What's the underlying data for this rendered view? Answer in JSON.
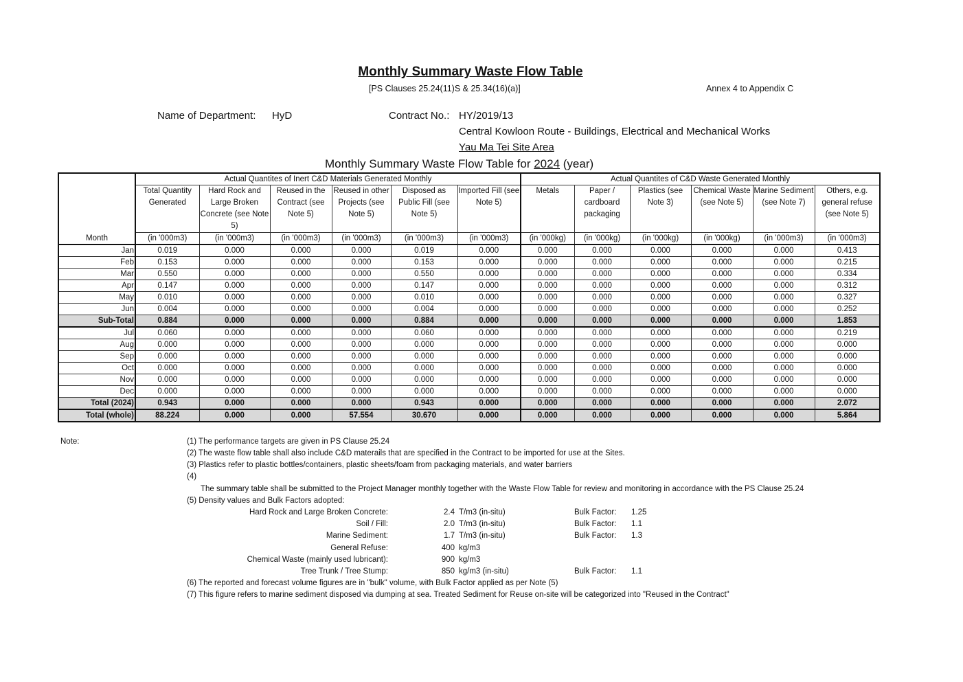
{
  "header": {
    "title": "Monthly Summary Waste Flow Table",
    "clauses": "[PS Clauses 25.24(11)S & 25.34(16)(a)]",
    "annex": "Annex 4 to Appendix C",
    "department_label": "Name of Department:",
    "department": "HyD",
    "contract_label": "Contract No.:",
    "contract_no": "HY/2019/13",
    "contract_name": "Central Kowloon Route - Buildings, Electrical and Mechanical Works",
    "site": "Yau Ma Tei Site Area",
    "table_title_prefix": "Monthly Summary Waste Flow Table for ",
    "year": "2024",
    "table_title_suffix": " (year)"
  },
  "table": {
    "group_inert": "Actual Quantites of Inert C&D Materials Generated Monthly",
    "group_waste": "Actual Quantites of C&D Waste Generated Monthly",
    "month_header": "Month",
    "columns": [
      {
        "label": "Total Quantity Generated",
        "unit": "(in '000m3)"
      },
      {
        "label": "Hard Rock and Large Broken Concrete (see Note 5)",
        "unit": "(in '000m3)"
      },
      {
        "label": "Reused in the Contract (see Note 5)",
        "unit": "(in '000m3)"
      },
      {
        "label": "Reused in other Projects (see Note 5)",
        "unit": "(in '000m3)"
      },
      {
        "label": "Disposed as Public Fill (see Note 5)",
        "unit": "(in '000m3)"
      },
      {
        "label": "Imported Fill (see Note 5)",
        "unit": "(in '000m3)"
      },
      {
        "label": "Metals",
        "unit": "(in '000kg)"
      },
      {
        "label": "Paper / cardboard packaging",
        "unit": "(in '000kg)"
      },
      {
        "label": "Plastics (see Note 3)",
        "unit": "(in '000kg)"
      },
      {
        "label": "Chemical Waste (see Note 5)",
        "unit": "(in '000kg)"
      },
      {
        "label": "Marine Sediment (see Note 7)",
        "unit": "(in '000m3)"
      },
      {
        "label": "Others, e.g. general refuse (see Note 5)",
        "unit": "(in '000m3)"
      }
    ],
    "rows": [
      {
        "month": "Jan",
        "type": "row",
        "values": [
          "0.019",
          "0.000",
          "0.000",
          "0.000",
          "0.019",
          "0.000",
          "0.000",
          "0.000",
          "0.000",
          "0.000",
          "0.000",
          "0.413"
        ]
      },
      {
        "month": "Feb",
        "type": "row",
        "values": [
          "0.153",
          "0.000",
          "0.000",
          "0.000",
          "0.153",
          "0.000",
          "0.000",
          "0.000",
          "0.000",
          "0.000",
          "0.000",
          "0.215"
        ]
      },
      {
        "month": "Mar",
        "type": "row",
        "values": [
          "0.550",
          "0.000",
          "0.000",
          "0.000",
          "0.550",
          "0.000",
          "0.000",
          "0.000",
          "0.000",
          "0.000",
          "0.000",
          "0.334"
        ]
      },
      {
        "month": "Apr",
        "type": "row",
        "values": [
          "0.147",
          "0.000",
          "0.000",
          "0.000",
          "0.147",
          "0.000",
          "0.000",
          "0.000",
          "0.000",
          "0.000",
          "0.000",
          "0.312"
        ]
      },
      {
        "month": "May",
        "type": "row",
        "values": [
          "0.010",
          "0.000",
          "0.000",
          "0.000",
          "0.010",
          "0.000",
          "0.000",
          "0.000",
          "0.000",
          "0.000",
          "0.000",
          "0.327"
        ]
      },
      {
        "month": "Jun",
        "type": "row",
        "values": [
          "0.004",
          "0.000",
          "0.000",
          "0.000",
          "0.004",
          "0.000",
          "0.000",
          "0.000",
          "0.000",
          "0.000",
          "0.000",
          "0.252"
        ]
      },
      {
        "month": "Sub-Total",
        "type": "sub",
        "values": [
          "0.884",
          "0.000",
          "0.000",
          "0.000",
          "0.884",
          "0.000",
          "0.000",
          "0.000",
          "0.000",
          "0.000",
          "0.000",
          "1.853"
        ]
      },
      {
        "month": "Jul",
        "type": "row",
        "values": [
          "0.060",
          "0.000",
          "0.000",
          "0.000",
          "0.060",
          "0.000",
          "0.000",
          "0.000",
          "0.000",
          "0.000",
          "0.000",
          "0.219"
        ]
      },
      {
        "month": "Aug",
        "type": "row",
        "values": [
          "0.000",
          "0.000",
          "0.000",
          "0.000",
          "0.000",
          "0.000",
          "0.000",
          "0.000",
          "0.000",
          "0.000",
          "0.000",
          "0.000"
        ]
      },
      {
        "month": "Sep",
        "type": "row",
        "values": [
          "0.000",
          "0.000",
          "0.000",
          "0.000",
          "0.000",
          "0.000",
          "0.000",
          "0.000",
          "0.000",
          "0.000",
          "0.000",
          "0.000"
        ]
      },
      {
        "month": "Oct",
        "type": "row",
        "values": [
          "0.000",
          "0.000",
          "0.000",
          "0.000",
          "0.000",
          "0.000",
          "0.000",
          "0.000",
          "0.000",
          "0.000",
          "0.000",
          "0.000"
        ]
      },
      {
        "month": "Nov",
        "type": "row",
        "values": [
          "0.000",
          "0.000",
          "0.000",
          "0.000",
          "0.000",
          "0.000",
          "0.000",
          "0.000",
          "0.000",
          "0.000",
          "0.000",
          "0.000"
        ]
      },
      {
        "month": "Dec",
        "type": "row",
        "values": [
          "0.000",
          "0.000",
          "0.000",
          "0.000",
          "0.000",
          "0.000",
          "0.000",
          "0.000",
          "0.000",
          "0.000",
          "0.000",
          "0.000"
        ]
      },
      {
        "month": "Total (2024)",
        "type": "tot",
        "values": [
          "0.943",
          "0.000",
          "0.000",
          "0.000",
          "0.943",
          "0.000",
          "0.000",
          "0.000",
          "0.000",
          "0.000",
          "0.000",
          "2.072"
        ]
      },
      {
        "month": "Total (whole)",
        "type": "whole",
        "values": [
          "88.224",
          "0.000",
          "0.000",
          "57.554",
          "30.670",
          "0.000",
          "0.000",
          "0.000",
          "0.000",
          "0.000",
          "0.000",
          "5.864"
        ]
      }
    ]
  },
  "notes": {
    "label": "Note:",
    "n1": "(1)  The performance targets are given in PS Clause 25.24",
    "n2": "(2)  The waste flow table shall also include C&D materails that are specified in the Contract to be imported for use at the Sites.",
    "n3": "(3)  Plastics refer to plastic bottles/containers, plastic sheets/foam from packaging materials, and water barriers",
    "n4": "(4)",
    "n4_text": "The summary table shall be submitted to the Project Manager monthly together with the Waste Flow Table for review and monitoring in accordance with the PS Clause 25.24",
    "n5": "(5)  Density values and Bulk Factors adopted:",
    "density": [
      {
        "material": "Hard Rock and Large Broken Concrete:",
        "value": "2.4",
        "unit": "T/m3 (in-situ)",
        "bf_label": "Bulk Factor:",
        "bf": "1.25"
      },
      {
        "material": "Soil / Fill:",
        "value": "2.0",
        "unit": "T/m3 (in-situ)",
        "bf_label": "Bulk Factor:",
        "bf": "1.1"
      },
      {
        "material": "Marine Sediment:",
        "value": "1.7",
        "unit": "T/m3 (in-situ)",
        "bf_label": "Bulk Factor:",
        "bf": "1.3"
      },
      {
        "material": "General Refuse:",
        "value": "400",
        "unit": "kg/m3",
        "bf_label": "",
        "bf": ""
      },
      {
        "material": "Chemical Waste (mainly used lubricant):",
        "value": "900",
        "unit": "kg/m3",
        "bf_label": "",
        "bf": ""
      },
      {
        "material": "Tree Trunk / Tree Stump:",
        "value": "850",
        "unit": "kg/m3 (in-situ)",
        "bf_label": "Bulk Factor:",
        "bf": "1.1"
      }
    ],
    "n6": "(6)  The reported and forecast volume figures are in \"bulk\" volume, with Bulk Factor applied as per Note (5)",
    "n7": "(7)  This figure refers to marine sediment disposed via dumping at sea. Treated Sediment for Reuse on-site will be categorized into \"Reused in the Contract\""
  }
}
